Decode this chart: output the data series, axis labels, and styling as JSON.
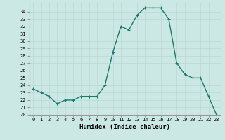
{
  "x": [
    0,
    1,
    2,
    3,
    4,
    5,
    6,
    7,
    8,
    9,
    10,
    11,
    12,
    13,
    14,
    15,
    16,
    17,
    18,
    19,
    20,
    21,
    22,
    23
  ],
  "y": [
    23.5,
    23.0,
    22.5,
    21.5,
    22.0,
    22.0,
    22.5,
    22.5,
    22.5,
    24.0,
    28.5,
    32.0,
    31.5,
    33.5,
    34.5,
    34.5,
    34.5,
    33.0,
    27.0,
    25.5,
    25.0,
    25.0,
    22.5,
    20.0
  ],
  "line_color": "#1a7a6e",
  "marker": "+",
  "marker_color": "#1a7a6e",
  "marker_size": 3,
  "xlabel": "Humidex (Indice chaleur)",
  "ylim": [
    20,
    35
  ],
  "xlim": [
    -0.5,
    23.5
  ],
  "yticks": [
    20,
    21,
    22,
    23,
    24,
    25,
    26,
    27,
    28,
    29,
    30,
    31,
    32,
    33,
    34
  ],
  "xticks": [
    0,
    1,
    2,
    3,
    4,
    5,
    6,
    7,
    8,
    9,
    10,
    11,
    12,
    13,
    14,
    15,
    16,
    17,
    18,
    19,
    20,
    21,
    22,
    23
  ],
  "grid_color": "#b8d8d4",
  "bg_color": "#cce8e4",
  "xlabel_fontsize": 6.5,
  "tick_fontsize": 5,
  "linewidth": 1.0
}
